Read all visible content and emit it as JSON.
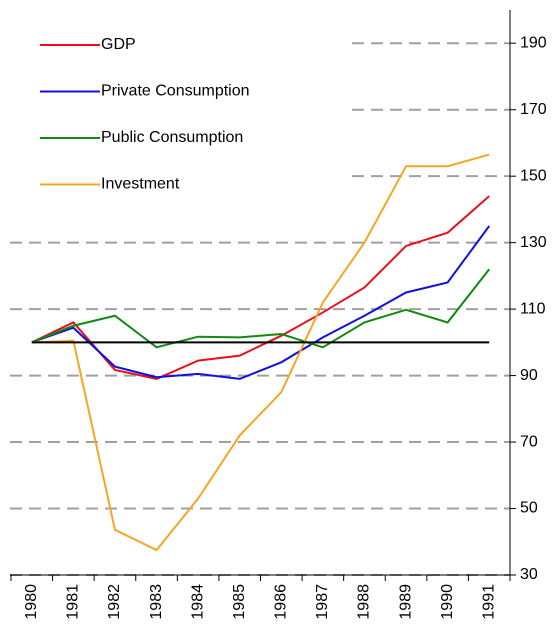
{
  "chart_data": {
    "type": "line",
    "categories": [
      "1980",
      "1981",
      "1982",
      "1983",
      "1984",
      "1985",
      "1986",
      "1987",
      "1988",
      "1989",
      "1990",
      "1991"
    ],
    "series": [
      {
        "name": "GDP",
        "color": "#e8101a",
        "values": [
          100,
          106,
          91.7,
          89,
          94.5,
          96,
          102,
          109,
          116.5,
          129,
          133,
          144
        ]
      },
      {
        "name": "Private Consumption",
        "color": "#1010e0",
        "values": [
          100,
          104.4,
          92.7,
          89.5,
          90.5,
          89,
          94,
          101.5,
          108,
          115,
          118,
          135
        ]
      },
      {
        "name": "Public Consumption",
        "color": "#108a10",
        "values": [
          100,
          105,
          108,
          98.5,
          101.7,
          101.5,
          102.5,
          98.5,
          106,
          109.8,
          106,
          122
        ]
      },
      {
        "name": "Investment",
        "color": "#f5a623",
        "values": [
          100,
          100.5,
          43.6,
          37.5,
          53,
          72,
          85,
          112,
          130,
          153,
          153,
          156.5
        ]
      }
    ],
    "reference_line": 100,
    "ylim": [
      30,
      200
    ],
    "yticks": [
      30,
      50,
      70,
      90,
      110,
      130,
      150,
      170,
      190
    ],
    "grid": true,
    "legend": "top-left"
  }
}
